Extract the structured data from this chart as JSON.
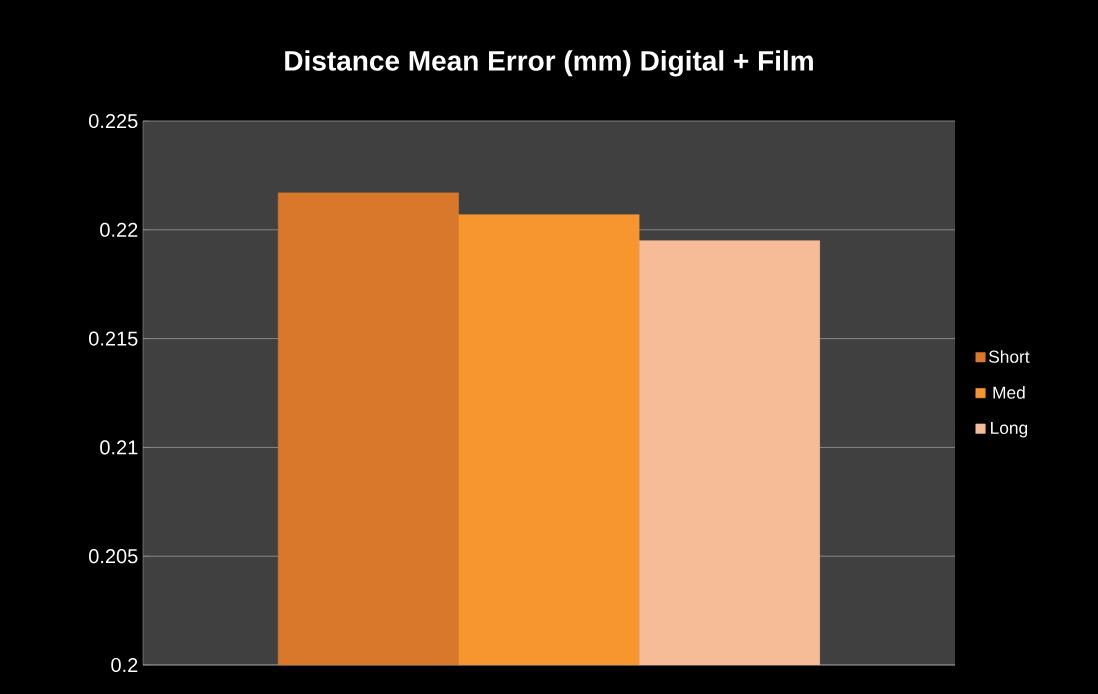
{
  "chart_data": {
    "type": "bar",
    "title": "Distance Mean Error (mm) Digital + Film",
    "categories": [
      null
    ],
    "series": [
      {
        "name": "Short",
        "color": "#d9782a",
        "values": [
          0.2217
        ]
      },
      {
        "name": "Med",
        "color": "#f7962f",
        "values": [
          0.2207
        ]
      },
      {
        "name": "Long",
        "color": "#f6bc98",
        "values": [
          0.2195
        ]
      }
    ],
    "ylim": [
      0.2,
      0.225
    ],
    "yticks": [
      0.2,
      0.205,
      0.21,
      0.215,
      0.22,
      0.225
    ],
    "grid": "y",
    "legend": "right"
  }
}
